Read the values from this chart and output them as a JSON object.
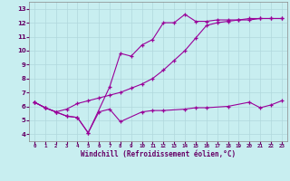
{
  "xlabel": "Windchill (Refroidissement éolien,°C)",
  "bg_color": "#c8eef0",
  "line_color": "#990099",
  "xlim": [
    -0.5,
    23.5
  ],
  "ylim": [
    3.5,
    13.5
  ],
  "xticks": [
    0,
    1,
    2,
    3,
    4,
    5,
    6,
    7,
    8,
    9,
    10,
    11,
    12,
    13,
    14,
    15,
    16,
    17,
    18,
    19,
    20,
    21,
    22,
    23
  ],
  "yticks": [
    4,
    5,
    6,
    7,
    8,
    9,
    10,
    11,
    12,
    13
  ],
  "curve1_x": [
    0,
    1,
    2,
    3,
    4,
    5,
    6,
    7,
    8,
    10,
    11,
    12,
    14,
    15,
    16,
    18,
    20,
    21,
    22,
    23
  ],
  "curve1_y": [
    6.3,
    5.9,
    5.6,
    5.3,
    5.2,
    4.1,
    5.6,
    5.8,
    4.9,
    5.6,
    5.7,
    5.7,
    5.8,
    5.9,
    5.9,
    6.0,
    6.3,
    5.9,
    6.1,
    6.4
  ],
  "curve2_x": [
    0,
    1,
    2,
    3,
    4,
    5,
    7,
    8,
    9,
    10,
    11,
    12,
    13,
    14,
    15,
    16,
    17,
    18,
    19,
    20,
    21,
    22,
    23
  ],
  "curve2_y": [
    6.3,
    5.9,
    5.6,
    5.3,
    5.2,
    4.1,
    7.4,
    9.8,
    9.6,
    10.4,
    10.8,
    12.0,
    12.0,
    12.6,
    12.1,
    12.1,
    12.2,
    12.2,
    12.2,
    12.2,
    12.3,
    12.3,
    12.3
  ],
  "curve3_x": [
    0,
    1,
    2,
    3,
    4,
    5,
    6,
    7,
    8,
    9,
    10,
    11,
    12,
    13,
    14,
    15,
    16,
    17,
    18,
    19,
    20,
    21,
    22,
    23
  ],
  "curve3_y": [
    6.3,
    5.9,
    5.6,
    5.8,
    6.2,
    6.4,
    6.6,
    6.8,
    7.0,
    7.3,
    7.6,
    8.0,
    8.6,
    9.3,
    10.0,
    10.9,
    11.8,
    12.0,
    12.1,
    12.2,
    12.3,
    12.3,
    12.3,
    12.3
  ]
}
